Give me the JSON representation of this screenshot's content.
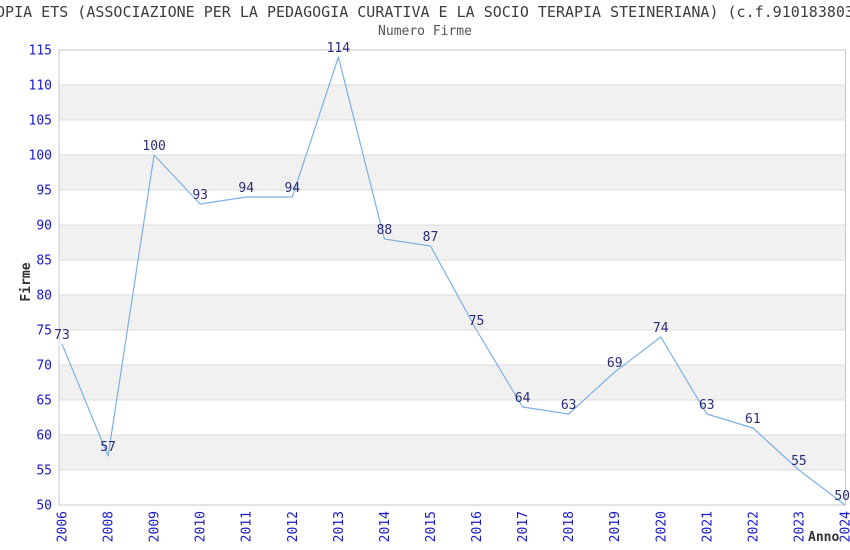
{
  "header": {
    "title": "OPIA ETS (ASSOCIAZIONE PER LA PEDAGOGIA CURATIVA E LA SOCIO TERAPIA STEINERIANA) (c.f.910183803",
    "subtitle": "Numero Firme"
  },
  "chart_data": {
    "type": "line",
    "title": "Numero Firme",
    "categories": [
      "2006",
      "2008",
      "2009",
      "2010",
      "2011",
      "2012",
      "2013",
      "2014",
      "2015",
      "2016",
      "2017",
      "2018",
      "2019",
      "2020",
      "2021",
      "2022",
      "2023",
      "2024"
    ],
    "values": [
      73,
      57,
      100,
      93,
      94,
      94,
      114,
      88,
      87,
      75,
      64,
      63,
      69,
      74,
      63,
      61,
      55,
      50
    ],
    "xlabel": "Anno",
    "ylabel": "Firme",
    "ylim": [
      50,
      115
    ],
    "ytick_step": 5,
    "grid": "horizontal",
    "alternating_bands": true,
    "data_labels": true,
    "legend": "none",
    "colors": {
      "line": "#7eb0e6",
      "tick_labels": "#1818cd",
      "data_labels": "#2c2c78",
      "band": "#f1f1f1",
      "gridline": "#dcdcdc",
      "border": "#c9c9c9",
      "title": "#3d3d3d",
      "subtitle": "#555555",
      "axis_titles": "#333333"
    }
  }
}
